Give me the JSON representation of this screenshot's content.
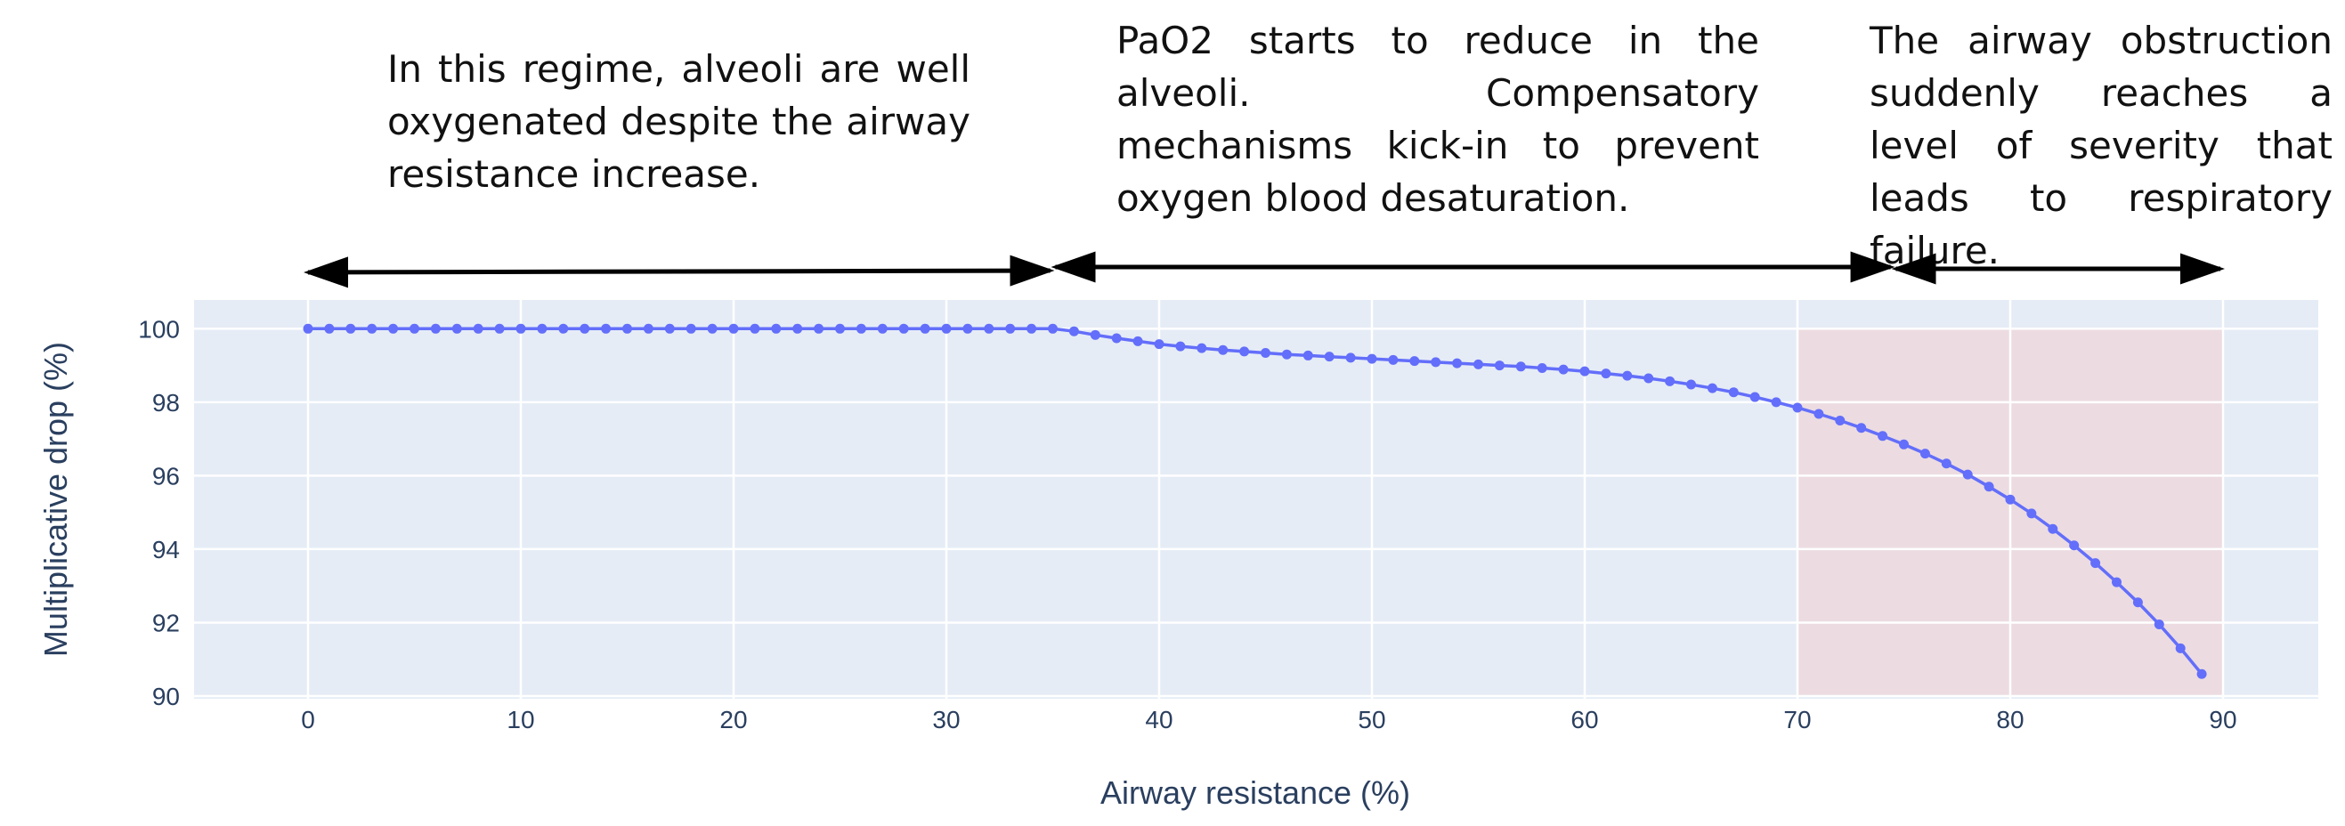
{
  "annotations": [
    "In this regime, alveoli are well oxygenated despite the airway resistance increase.",
    "PaO2 starts to reduce in the alveoli. Compensatory mechanisms kick-in to prevent oxygen blood desaturation.",
    "The airway obstruction suddenly reaches a level of severity that leads to respiratory failure."
  ],
  "colors": {
    "plot_bg": "#e5ecf6",
    "grid": "#ffffff",
    "line": "#636efa",
    "shade": "#f4cccc",
    "text": "#2a3f5f",
    "arrow": "#000000"
  },
  "chart_data": {
    "type": "line",
    "xlabel": "Airway resistance (%)",
    "ylabel": "Multiplicative drop (%)",
    "xlim": [
      -5.5,
      94
    ],
    "ylim": [
      90,
      100.8
    ],
    "xticks": [
      0,
      10,
      20,
      30,
      40,
      50,
      60,
      70,
      80,
      90
    ],
    "yticks": [
      90,
      92,
      94,
      96,
      98,
      100
    ],
    "grid": true,
    "shaded_region": {
      "x": [
        70,
        90
      ],
      "y": [
        90,
        100
      ]
    },
    "regime_arrows": [
      [
        0,
        35
      ],
      [
        35,
        74.5
      ],
      [
        74.5,
        90
      ]
    ],
    "series": [
      {
        "x": [
          0,
          1,
          2,
          3,
          4,
          5,
          6,
          7,
          8,
          9,
          10,
          11,
          12,
          13,
          14,
          15,
          16,
          17,
          18,
          19,
          20,
          21,
          22,
          23,
          24,
          25,
          26,
          27,
          28,
          29,
          30,
          31,
          32,
          33,
          34,
          35,
          36,
          37,
          38,
          39,
          40,
          41,
          42,
          43,
          44,
          45,
          46,
          47,
          48,
          49,
          50,
          51,
          52,
          53,
          54,
          55,
          56,
          57,
          58,
          59,
          60,
          61,
          62,
          63,
          64,
          65,
          66,
          67,
          68,
          69,
          70,
          71,
          72,
          73,
          74,
          75,
          76,
          77,
          78,
          79,
          80,
          81,
          82,
          83,
          84,
          85,
          86,
          87,
          88,
          89
        ],
        "y": [
          100,
          100,
          100,
          100,
          100,
          100,
          100,
          100,
          100,
          100,
          100,
          100,
          100,
          100,
          100,
          100,
          100,
          100,
          100,
          100,
          100,
          100,
          100,
          100,
          100,
          100,
          100,
          100,
          100,
          100,
          100,
          100,
          100,
          100,
          100,
          100,
          99.93,
          99.83,
          99.74,
          99.66,
          99.58,
          99.52,
          99.47,
          99.42,
          99.38,
          99.34,
          99.3,
          99.27,
          99.24,
          99.21,
          99.18,
          99.15,
          99.12,
          99.09,
          99.06,
          99.03,
          99.0,
          98.97,
          98.93,
          98.89,
          98.84,
          98.78,
          98.72,
          98.65,
          98.57,
          98.48,
          98.38,
          98.27,
          98.14,
          98.0,
          97.85,
          97.68,
          97.5,
          97.3,
          97.08,
          96.85,
          96.6,
          96.33,
          96.03,
          95.7,
          95.35,
          94.97,
          94.55,
          94.1,
          93.62,
          93.1,
          92.55,
          91.95,
          91.3,
          90.6
        ]
      }
    ]
  }
}
